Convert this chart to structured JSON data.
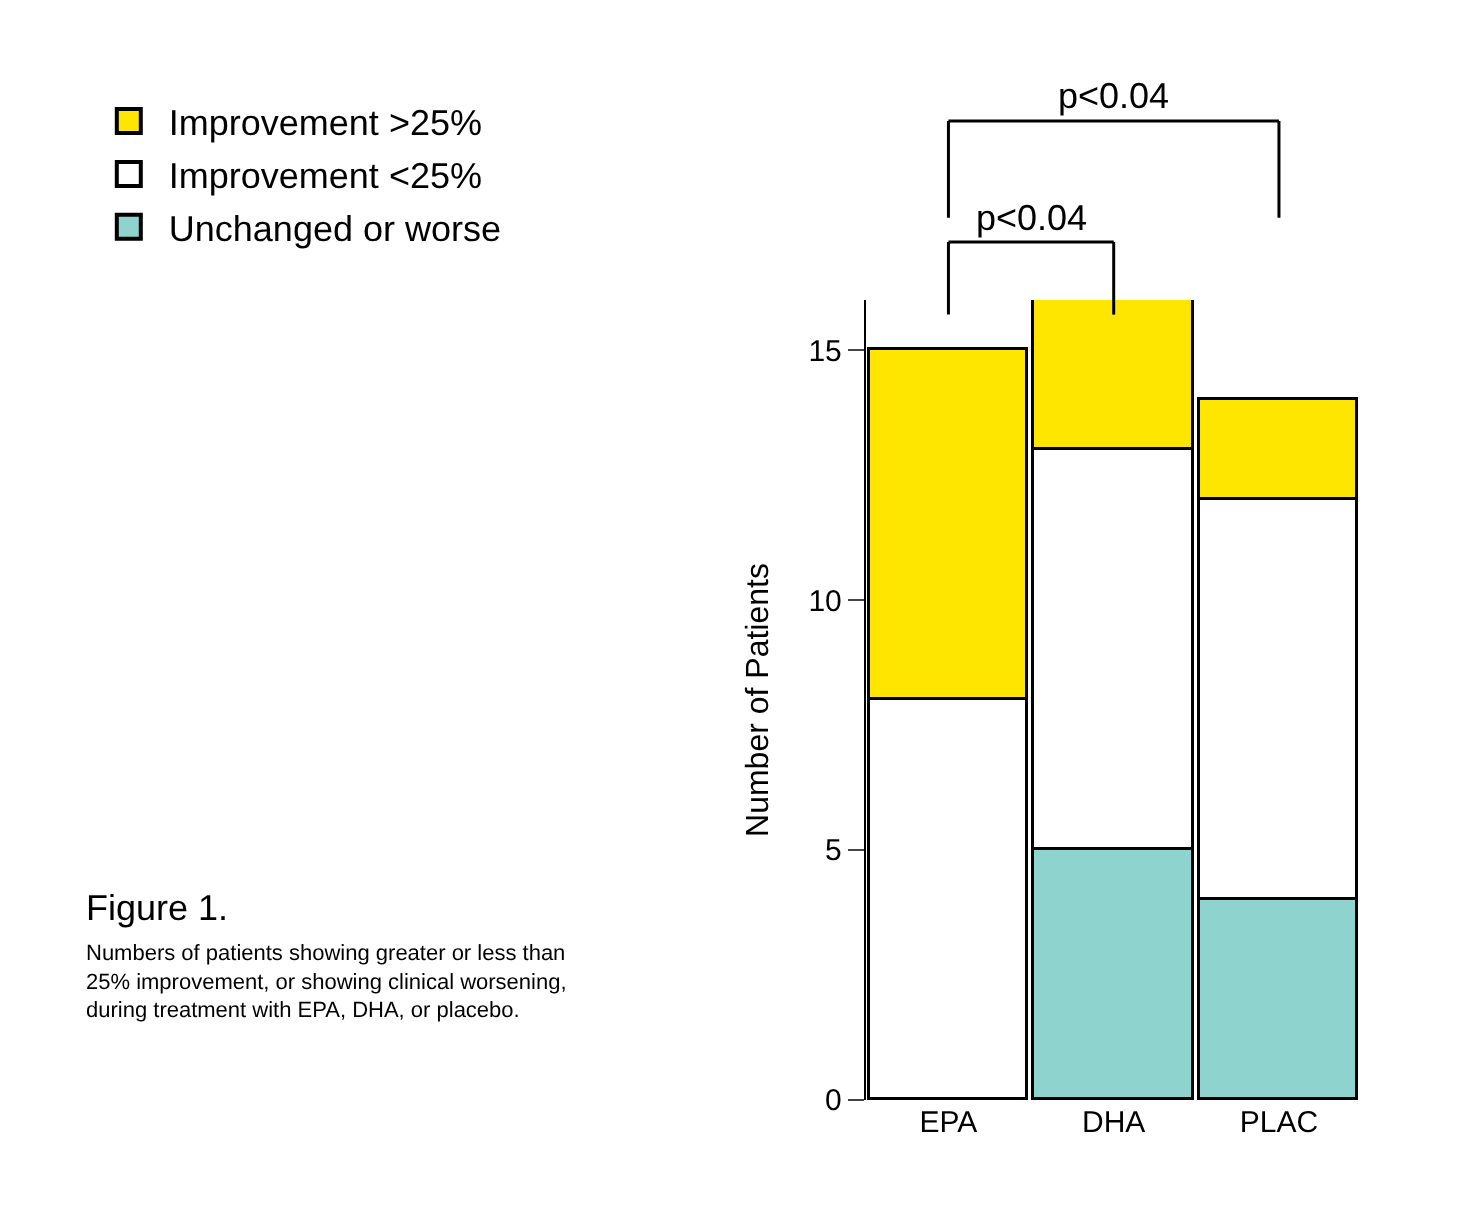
{
  "chart_data": {
    "type": "bar",
    "stacked": true,
    "ylabel": "Number of Patients",
    "categories": [
      "EPA",
      "DHA",
      "PLAC"
    ],
    "series": [
      {
        "name": "Unchanged or worse",
        "color": "#8fd3cf",
        "values": [
          0,
          5,
          4
        ]
      },
      {
        "name": "Improvement <25%",
        "color": "#ffffff",
        "values": [
          8,
          8,
          8
        ]
      },
      {
        "name": "Improvement >25%",
        "color": "#ffe600",
        "values": [
          7,
          3,
          2
        ]
      }
    ],
    "ylim": [
      0,
      16
    ],
    "yticks": [
      0,
      5,
      10,
      15
    ],
    "legend": "top left",
    "annotations": [
      "p<0.04",
      "p<0.04",
      "Figure 1.",
      "Numbers of patients showing greater or less than 25% improvement, or showing clinical worsening, during treatment with EPA, DHA, or placebo."
    ]
  }
}
